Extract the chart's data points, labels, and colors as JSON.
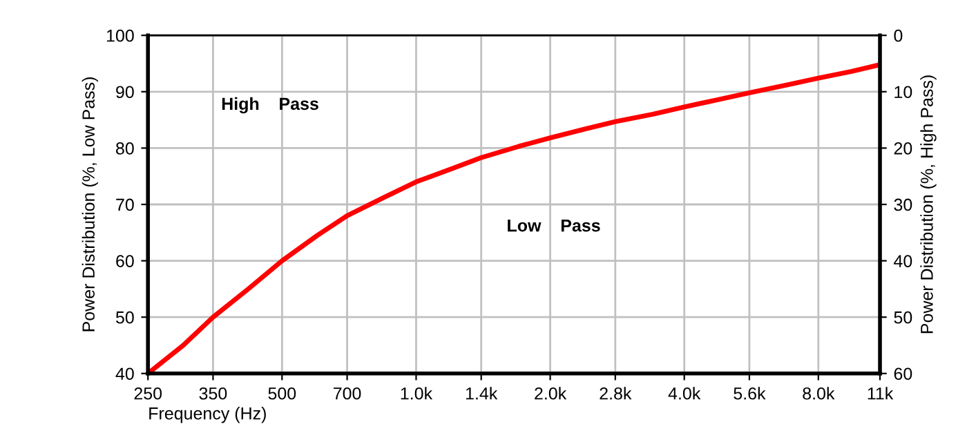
{
  "chart_data": {
    "type": "line",
    "xlabel": "Frequency (Hz)",
    "ylabel": "Power Distribution (%, Low Pass)",
    "y2label": "Power Distribution (%, High Pass)",
    "log": "x",
    "grid": true,
    "marker": "none",
    "line_style": "solid",
    "xlim": [
      250,
      11000
    ],
    "xticks": [
      250,
      350,
      500,
      700,
      {
        "value": 1000,
        "label": "1.0k"
      },
      {
        "value": 1400,
        "label": "1.4k"
      },
      {
        "value": 2000,
        "label": "2.0k"
      },
      {
        "value": 2800,
        "label": "2.8k"
      },
      {
        "value": 4000,
        "label": "4.0k"
      },
      {
        "value": 5600,
        "label": "5.6k"
      },
      {
        "value": 8000,
        "label": "8.0k"
      },
      {
        "value": 11000,
        "label": "11k"
      }
    ],
    "ylim": [
      40,
      100
    ],
    "yticks": [
      40,
      50,
      60,
      70,
      80,
      90,
      100
    ],
    "y2lim": [
      60,
      0
    ],
    "y2ticks": [
      0,
      10,
      20,
      30,
      40,
      50,
      60
    ],
    "annotations": [
      "High    Pass",
      "Low    Pass"
    ],
    "series": [
      {
        "color": "#ff0000",
        "x": [
          250,
          300,
          350,
          420,
          500,
          600,
          700,
          850,
          1000,
          1200,
          1400,
          1700,
          2000,
          2400,
          2800,
          3400,
          4000,
          4700,
          5600,
          6700,
          8000,
          9500,
          11000
        ],
        "values": [
          40,
          45,
          50,
          55,
          60,
          64.5,
          68,
          71.3,
          74,
          76.3,
          78.3,
          80.3,
          81.8,
          83.4,
          84.7,
          86,
          87.3,
          88.5,
          89.8,
          91.1,
          92.4,
          93.6,
          94.8
        ]
      }
    ]
  }
}
